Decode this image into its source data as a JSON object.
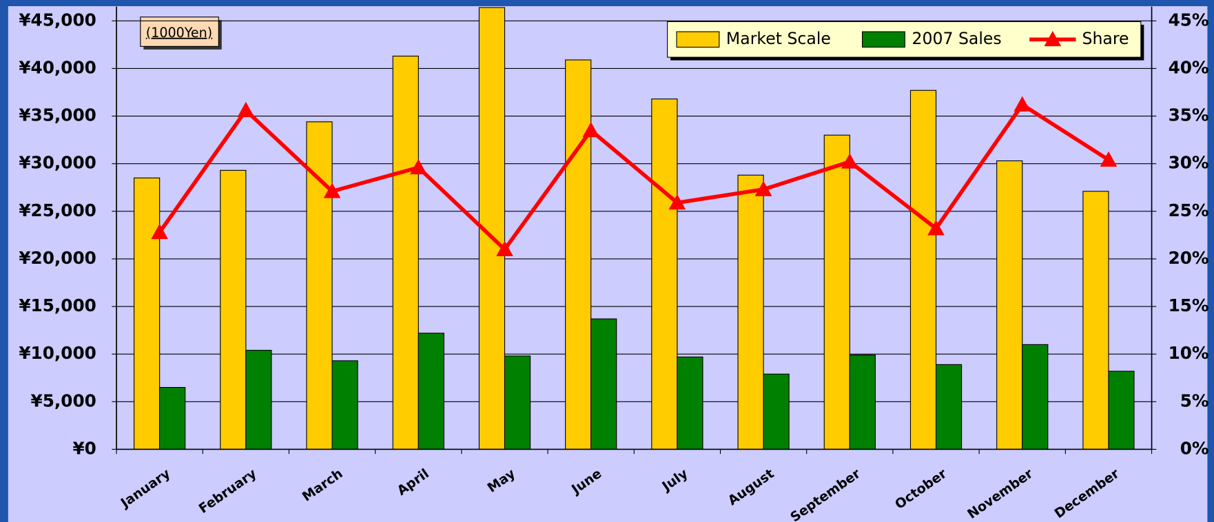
{
  "chart_data": {
    "type": "bar",
    "note": "(1000Yen)",
    "categories": [
      "January",
      "February",
      "March",
      "April",
      "May",
      "June",
      "July",
      "August",
      "September",
      "October",
      "November",
      "December"
    ],
    "series": [
      {
        "name": "Market Scale",
        "color": "#ffcc00",
        "values": [
          28500,
          29300,
          34400,
          41300,
          46400,
          40900,
          36800,
          28800,
          33000,
          37700,
          30300,
          27100
        ]
      },
      {
        "name": "2007 Sales",
        "color": "#008000",
        "values": [
          6500,
          10400,
          9300,
          12200,
          9800,
          13700,
          9700,
          7900,
          9900,
          8900,
          11000,
          8200
        ]
      },
      {
        "name": "Share",
        "color": "#ff0000",
        "type": "line",
        "axis": "y2",
        "values": [
          22.8,
          35.6,
          27.1,
          29.6,
          21.0,
          33.5,
          25.9,
          27.3,
          30.2,
          23.2,
          36.2,
          30.4
        ]
      }
    ],
    "ylim": [
      0,
      46500
    ],
    "yticks": [
      {
        "value": 0,
        "label": "¥0"
      },
      {
        "value": 5000,
        "label": "¥5,000"
      },
      {
        "value": 10000,
        "label": "¥10,000"
      },
      {
        "value": 15000,
        "label": "¥15,000"
      },
      {
        "value": 20000,
        "label": "¥20,000"
      },
      {
        "value": 25000,
        "label": "¥25,000"
      },
      {
        "value": 30000,
        "label": "¥30,000"
      },
      {
        "value": 35000,
        "label": "¥35,000"
      },
      {
        "value": 40000,
        "label": "¥40,000"
      },
      {
        "value": 45000,
        "label": "¥45,000"
      }
    ],
    "y2lim": [
      0,
      46.5
    ],
    "y2ticks": [
      {
        "value": 0,
        "label": "0%"
      },
      {
        "value": 5,
        "label": "5%"
      },
      {
        "value": 10,
        "label": "10%"
      },
      {
        "value": 15,
        "label": "15%"
      },
      {
        "value": 20,
        "label": "20%"
      },
      {
        "value": 25,
        "label": "25%"
      },
      {
        "value": 30,
        "label": "30%"
      },
      {
        "value": 35,
        "label": "35%"
      },
      {
        "value": 40,
        "label": "40%"
      },
      {
        "value": 45,
        "label": "45%"
      }
    ],
    "grid": true,
    "legend": "top-right"
  }
}
